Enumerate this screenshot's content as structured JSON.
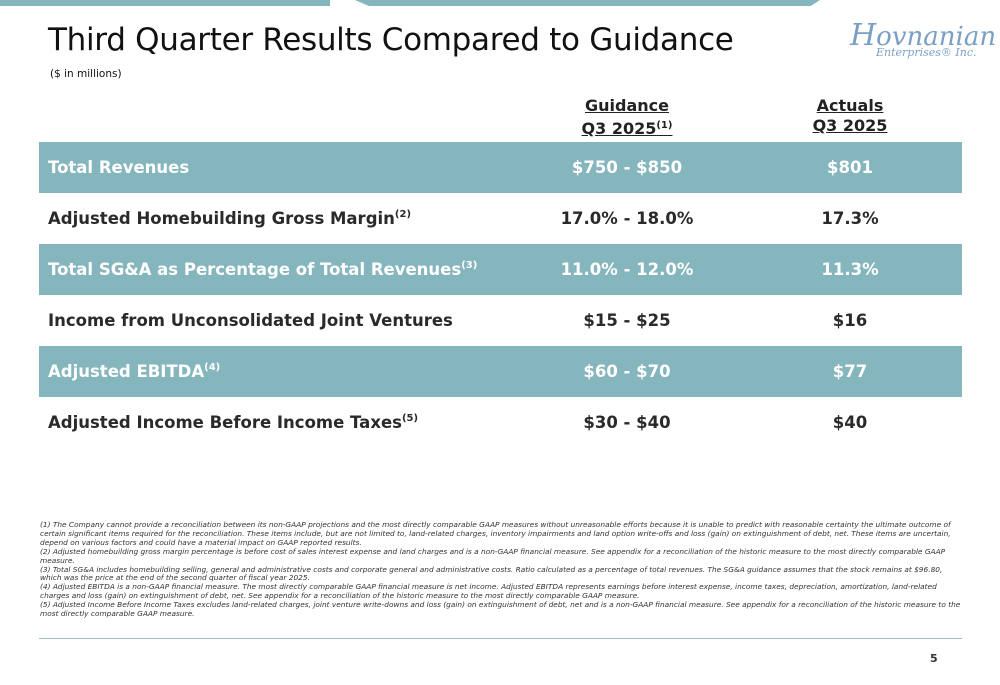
{
  "header": {
    "title": "Third Quarter Results Compared to Guidance",
    "subtitle": "($ in millions)"
  },
  "logo": {
    "first_letter": "H",
    "rest": "ovnanian",
    "sub": "Enterprises® Inc."
  },
  "columns": {
    "guidance_line1": "Guidance",
    "guidance_line2": "Q3 2025",
    "guidance_sup": "(1)",
    "actuals_line1": "Actuals",
    "actuals_line2": "Q3 2025"
  },
  "rows": [
    {
      "label": "Total Revenues",
      "sup": "",
      "guidance": "$750 - $850",
      "actual": "$801"
    },
    {
      "label": "Adjusted Homebuilding Gross Margin",
      "sup": "(2)",
      "guidance": "17.0% - 18.0%",
      "actual": "17.3%"
    },
    {
      "label": "Total SG&A as Percentage of Total Revenues",
      "sup": "(3)",
      "guidance": "11.0% - 12.0%",
      "actual": "11.3%"
    },
    {
      "label": "Income from Unconsolidated Joint Ventures",
      "sup": "",
      "guidance": "$15 - $25",
      "actual": "$16"
    },
    {
      "label": "Adjusted EBITDA",
      "sup": "(4)",
      "guidance": "$60 - $70",
      "actual": "$77"
    },
    {
      "label": "Adjusted Income Before Income Taxes",
      "sup": "(5)",
      "guidance": "$30 - $40",
      "actual": "$40"
    }
  ],
  "footnotes": [
    "(1) The Company cannot provide a reconciliation between its non-GAAP projections and the most directly comparable GAAP measures without unreasonable efforts because it is unable to predict with reasonable certainty the ultimate outcome of certain significant items required for the reconciliation. These items include, but are not limited to, land-related charges, inventory impairments and land option write-offs and loss (gain) on extinguishment of debt, net. These items are uncertain, depend on various factors and could have a material impact on GAAP reported results.",
    "(2) Adjusted homebuilding gross margin percentage is before cost of sales interest expense and land charges and is a non-GAAP financial measure. See appendix for a reconciliation of the historic measure to the most directly comparable GAAP measure.",
    "(3) Total SG&A includes homebuilding selling, general and administrative costs and corporate general and administrative costs. Ratio calculated as a percentage of total revenues. The SG&A guidance assumes that the stock remains at $96.80, which was the price at the end of the second quarter of fiscal year 2025.",
    "(4) Adjusted EBITDA is a non-GAAP financial measure. The most directly comparable GAAP financial measure is net income. Adjusted EBITDA represents earnings before interest expense, income taxes, depreciation, amortization, land-related charges and loss (gain) on extinguishment of debt, net. See appendix for a reconciliation of the historic measure to the most directly comparable GAAP measure.",
    "(5) Adjusted Income Before Income Taxes excludes land-related charges, joint venture write-downs and loss (gain) on extinguishment of debt, net and is a non-GAAP financial measure. See appendix for a reconciliation of the historic measure to the most directly comparable GAAP measure."
  ],
  "page_number": "5",
  "colors": {
    "accent": "#86b6bd",
    "logo": "#7a9fc4"
  }
}
